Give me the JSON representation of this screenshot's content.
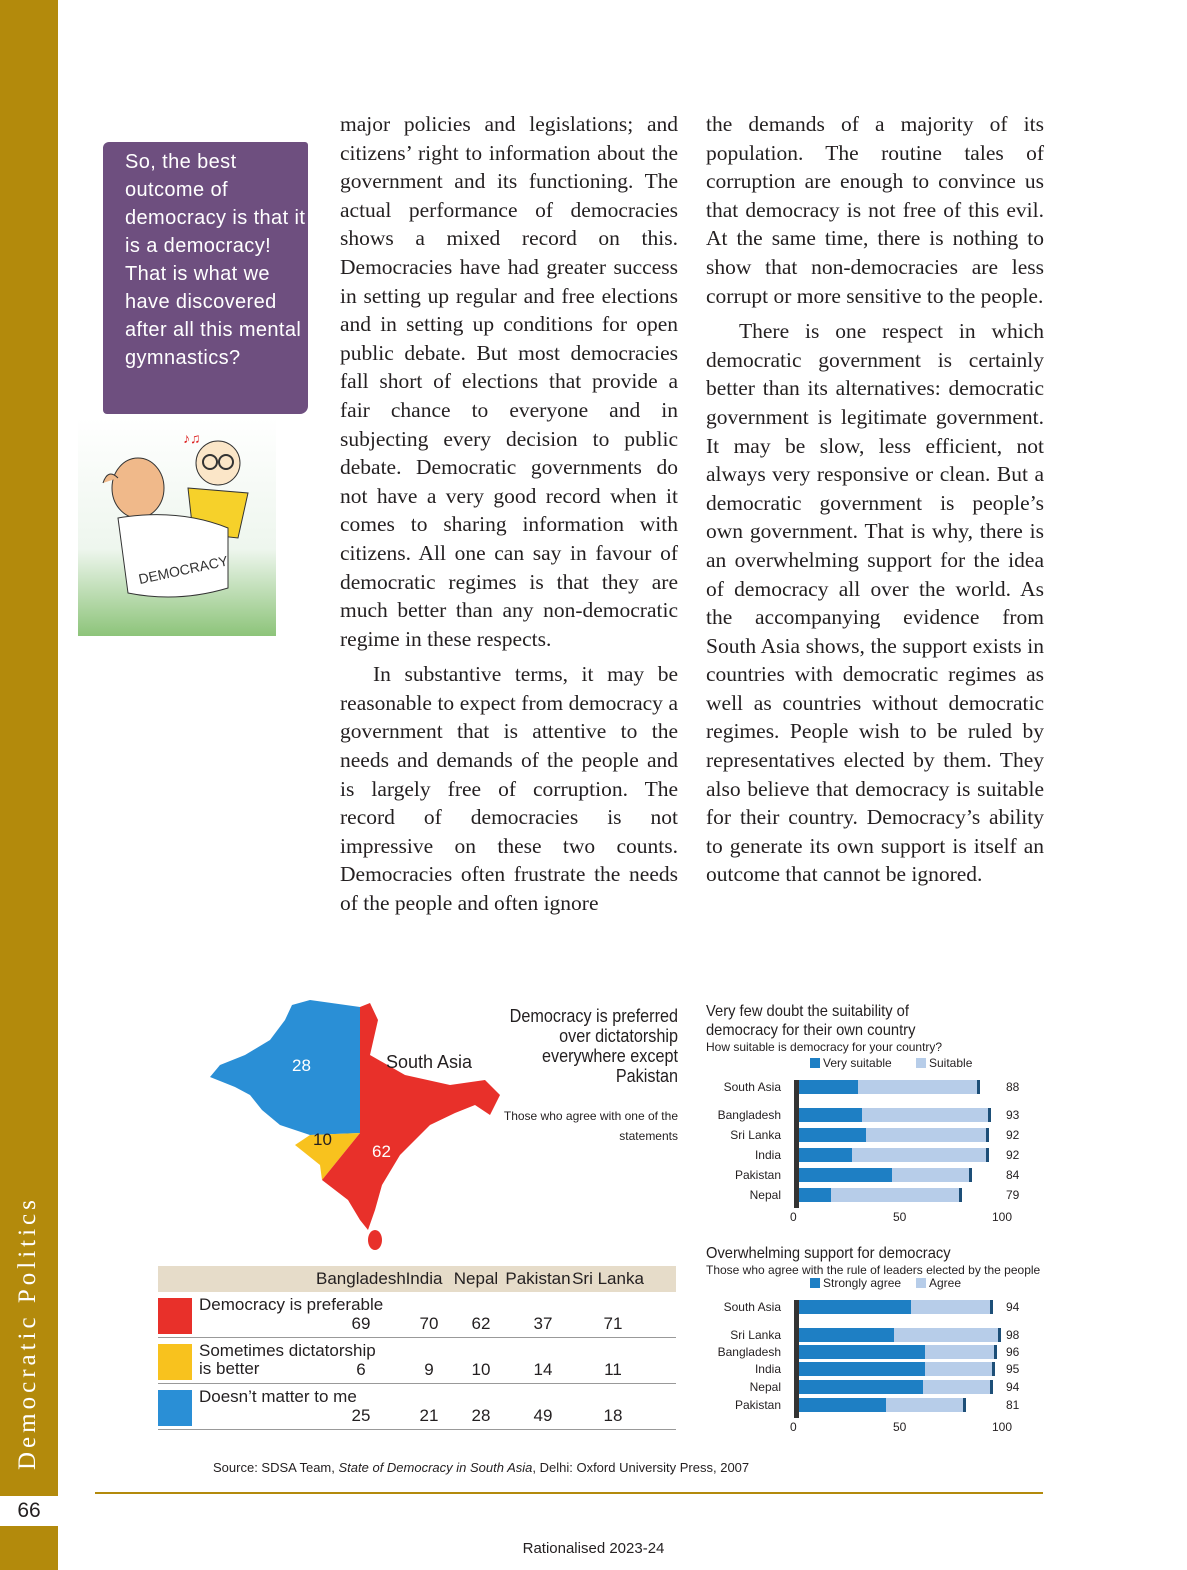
{
  "sidebar": {
    "running_title": "Democratic Politics",
    "page_number": "66"
  },
  "footer": "Rationalised 2023-24",
  "bubble": "So, the best outcome of democracy is that it is a democracy! That is what we have discovered after all this mental gymnastics?",
  "cartoon": {
    "label": "DEMOCRACY"
  },
  "columns": {
    "c1": [
      "major policies and legislations; and citizens’ right to information about the government and its functioning. The actual performance of democracies shows a mixed record on this. Democracies have had greater success in setting up regular and free elections and in setting up conditions for open public debate. But most democracies fall short of elections that provide a fair chance to everyone and in subjecting every decision to public debate. Democratic governments do not have a very good record when it comes to sharing information with citizens. All one can say in favour of democratic regimes is that they are much better than any non-democratic regime in these respects.",
      "In substantive terms, it may be reasonable to expect from democracy a government that is attentive to the needs and demands of the people and is largely free of corruption. The record of democracies is not impressive on these two counts. Democracies often frustrate the needs of the people and often ignore"
    ],
    "c2": [
      "the demands of a majority of its population. The routine tales of corruption are enough to convince us that democracy is not free of this evil. At the same time, there is nothing to show that non-democracies are less corrupt or more sensitive to the people.",
      "There is one respect in which democratic government is certainly better than its alternatives: democratic government is legitimate government. It may be slow, less efficient, not always very responsive or clean. But a democratic government is people’s own government. That is why, there is an overwhelming support for the idea of democracy all over the world. As the accompanying evidence from South Asia shows, the support exists in countries with democratic regimes as well as countries without democratic regimes. People wish to be ruled by representatives elected by them. They also believe that democracy is suitable for their country. Democracy’s ability to generate its own support is itself an outcome that cannot be ignored."
    ]
  },
  "map": {
    "title": "Democracy is preferred over dictatorship everywhere except Pakistan",
    "subtitle": "Those who agree with one of the statements",
    "region": "South Asia",
    "values": {
      "preferable": "62",
      "sometimes_dictatorship": "10",
      "doesnt_matter": "28"
    },
    "colors": {
      "preferable": "#e8302a",
      "sometimes_dictatorship": "#f8c21e",
      "doesnt_matter": "#2a8fd6"
    }
  },
  "table": {
    "columns": [
      "Bangladesh",
      "India",
      "Nepal",
      "Pakistan",
      "Sri Lanka"
    ],
    "rows": [
      {
        "label": "Democracy is preferable",
        "color": "#e8302a",
        "values": [
          "69",
          "70",
          "62",
          "37",
          "71"
        ]
      },
      {
        "label": "Sometimes dictatorship is better",
        "color": "#f8c21e",
        "values": [
          "6",
          "9",
          "10",
          "14",
          "11"
        ]
      },
      {
        "label": "Doesn’t matter to me",
        "color": "#2a8fd6",
        "values": [
          "25",
          "21",
          "28",
          "49",
          "18"
        ]
      }
    ]
  },
  "source": {
    "prefix": "Source: SDSA Team, ",
    "title": "State of Democracy in South Asia",
    "suffix": ", Delhi: Oxford University Press, 2007"
  },
  "chart_data": [
    {
      "type": "bar",
      "orientation": "horizontal",
      "stacked": true,
      "title": "Very few doubt the suitability of democracy for their own country",
      "subtitle": "How suitable is democracy for your country?",
      "categories": [
        "South Asia",
        "Bangladesh",
        "Sri Lanka",
        "India",
        "Pakistan",
        "Nepal"
      ],
      "series": [
        {
          "name": "Very suitable",
          "color": "#1e7fc4",
          "values": [
            29,
            31,
            33,
            26,
            46,
            16
          ]
        },
        {
          "name": "Suitable",
          "color": "#b7cde9",
          "values": [
            59,
            62,
            59,
            66,
            38,
            63
          ]
        }
      ],
      "totals": [
        "88",
        "93",
        "92",
        "92",
        "84",
        "79"
      ],
      "xlim": [
        0,
        100
      ],
      "xticks": [
        "0",
        "50",
        "100"
      ]
    },
    {
      "type": "bar",
      "orientation": "horizontal",
      "stacked": true,
      "title": "Overwhelming support for democracy",
      "subtitle": "Those who agree with the rule of leaders elected by the people",
      "categories": [
        "South Asia",
        "Sri Lanka",
        "Bangladesh",
        "India",
        "Nepal",
        "Pakistan"
      ],
      "series": [
        {
          "name": "Strongly agree",
          "color": "#1e7fc4",
          "values": [
            55,
            47,
            62,
            62,
            61,
            43
          ]
        },
        {
          "name": "Agree",
          "color": "#b7cde9",
          "values": [
            39,
            51,
            34,
            33,
            33,
            38
          ]
        }
      ],
      "totals": [
        "94",
        "98",
        "96",
        "95",
        "94",
        "81"
      ],
      "xlim": [
        0,
        100
      ],
      "xticks": [
        "0",
        "50",
        "100"
      ]
    }
  ]
}
